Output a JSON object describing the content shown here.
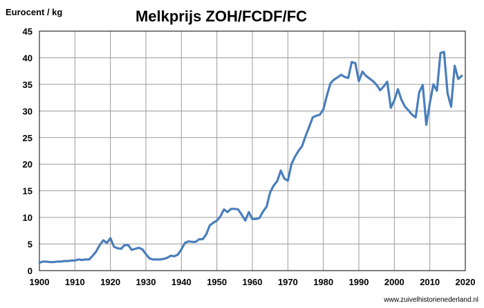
{
  "chart_data": {
    "type": "line",
    "title": "Melkprijs ZOH/FCDF/FC",
    "ylabel": "Eurocent / kg",
    "xlabel": "",
    "xlim": [
      1900,
      2020
    ],
    "ylim": [
      0,
      45
    ],
    "x_ticks": [
      1900,
      1910,
      1920,
      1930,
      1940,
      1950,
      1960,
      1970,
      1980,
      1990,
      2000,
      2010,
      2020
    ],
    "y_ticks": [
      0,
      5,
      10,
      15,
      20,
      25,
      30,
      35,
      40,
      45
    ],
    "grid": true,
    "line_color": "#4a7ebb",
    "series": [
      {
        "x": [
          1900,
          1901,
          1902,
          1903,
          1904,
          1905,
          1906,
          1907,
          1908,
          1909,
          1910,
          1911,
          1912,
          1913,
          1914,
          1915,
          1916,
          1917,
          1918,
          1919,
          1920,
          1921,
          1922,
          1923,
          1924,
          1925,
          1926,
          1927,
          1928,
          1929,
          1930,
          1931,
          1932,
          1933,
          1934,
          1935,
          1936,
          1937,
          1938,
          1939,
          1940,
          1941,
          1942,
          1943,
          1944,
          1945,
          1946,
          1947,
          1948,
          1949,
          1950,
          1951,
          1952,
          1953,
          1954,
          1955,
          1956,
          1957,
          1958,
          1959,
          1960,
          1961,
          1962,
          1963,
          1964,
          1965,
          1966,
          1967,
          1968,
          1969,
          1970,
          1971,
          1972,
          1973,
          1974,
          1975,
          1976,
          1977,
          1978,
          1979,
          1980,
          1981,
          1982,
          1983,
          1984,
          1985,
          1986,
          1987,
          1988,
          1989,
          1990,
          1991,
          1992,
          1993,
          1994,
          1995,
          1996,
          1997,
          1998,
          1999,
          2000,
          2001,
          2002,
          2003,
          2004,
          2005,
          2006,
          2007,
          2008,
          2009,
          2010,
          2011,
          2012,
          2013,
          2014,
          2015,
          2016,
          2017,
          2018,
          2019
        ],
        "y": [
          1.5,
          1.7,
          1.7,
          1.6,
          1.6,
          1.7,
          1.7,
          1.8,
          1.8,
          1.9,
          1.9,
          2.1,
          2.0,
          2.1,
          2.1,
          2.8,
          3.6,
          4.8,
          5.7,
          5.2,
          6.1,
          4.5,
          4.2,
          4.1,
          4.8,
          4.8,
          3.9,
          4.1,
          4.3,
          4.0,
          3.1,
          2.3,
          2.1,
          2.1,
          2.1,
          2.2,
          2.4,
          2.8,
          2.7,
          3.0,
          4.0,
          5.2,
          5.5,
          5.4,
          5.4,
          5.9,
          5.9,
          6.8,
          8.5,
          9.0,
          9.4,
          10.2,
          11.5,
          11.0,
          11.6,
          11.6,
          11.5,
          10.5,
          9.4,
          11.0,
          9.7,
          9.7,
          9.9,
          11.1,
          12.0,
          14.7,
          16.0,
          16.8,
          18.8,
          17.3,
          16.9,
          20.0,
          21.4,
          22.5,
          23.4,
          25.3,
          27.0,
          28.8,
          29.1,
          29.3,
          30.3,
          32.9,
          35.2,
          35.9,
          36.3,
          36.8,
          36.4,
          36.2,
          39.2,
          39.0,
          35.6,
          37.4,
          36.6,
          36.1,
          35.6,
          34.9,
          33.9,
          34.6,
          35.5,
          30.6,
          32.0,
          34.1,
          32.1,
          30.8,
          30.1,
          29.3,
          28.8,
          33.5,
          34.9,
          27.4,
          31.5,
          35.0,
          33.8,
          40.9,
          41.1,
          33.3,
          30.8,
          38.5,
          36.0,
          36.6
        ]
      }
    ]
  },
  "source_text": "www.zuivelhistorienederland.nl"
}
